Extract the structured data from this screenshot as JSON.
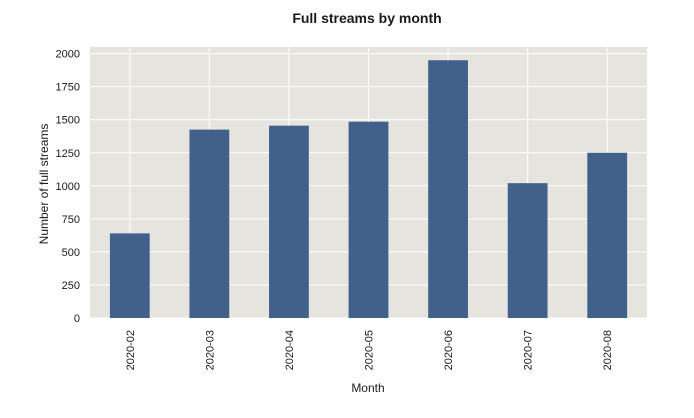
{
  "chart_data": {
    "type": "bar",
    "title": "Full streams by month",
    "xlabel": "Month",
    "ylabel": "Number of full streams",
    "categories": [
      "2020-02",
      "2020-03",
      "2020-04",
      "2020-05",
      "2020-06",
      "2020-07",
      "2020-08"
    ],
    "values": [
      640,
      1425,
      1455,
      1485,
      1950,
      1020,
      1250
    ],
    "ylim": [
      0,
      2050
    ],
    "yticks": [
      0,
      250,
      500,
      750,
      1000,
      1250,
      1500,
      1750,
      2000
    ],
    "grid": true,
    "legend": "none",
    "colors": {
      "bar": "#42618a",
      "plot_background": "#e5e4df",
      "grid": "#ffffff"
    }
  }
}
